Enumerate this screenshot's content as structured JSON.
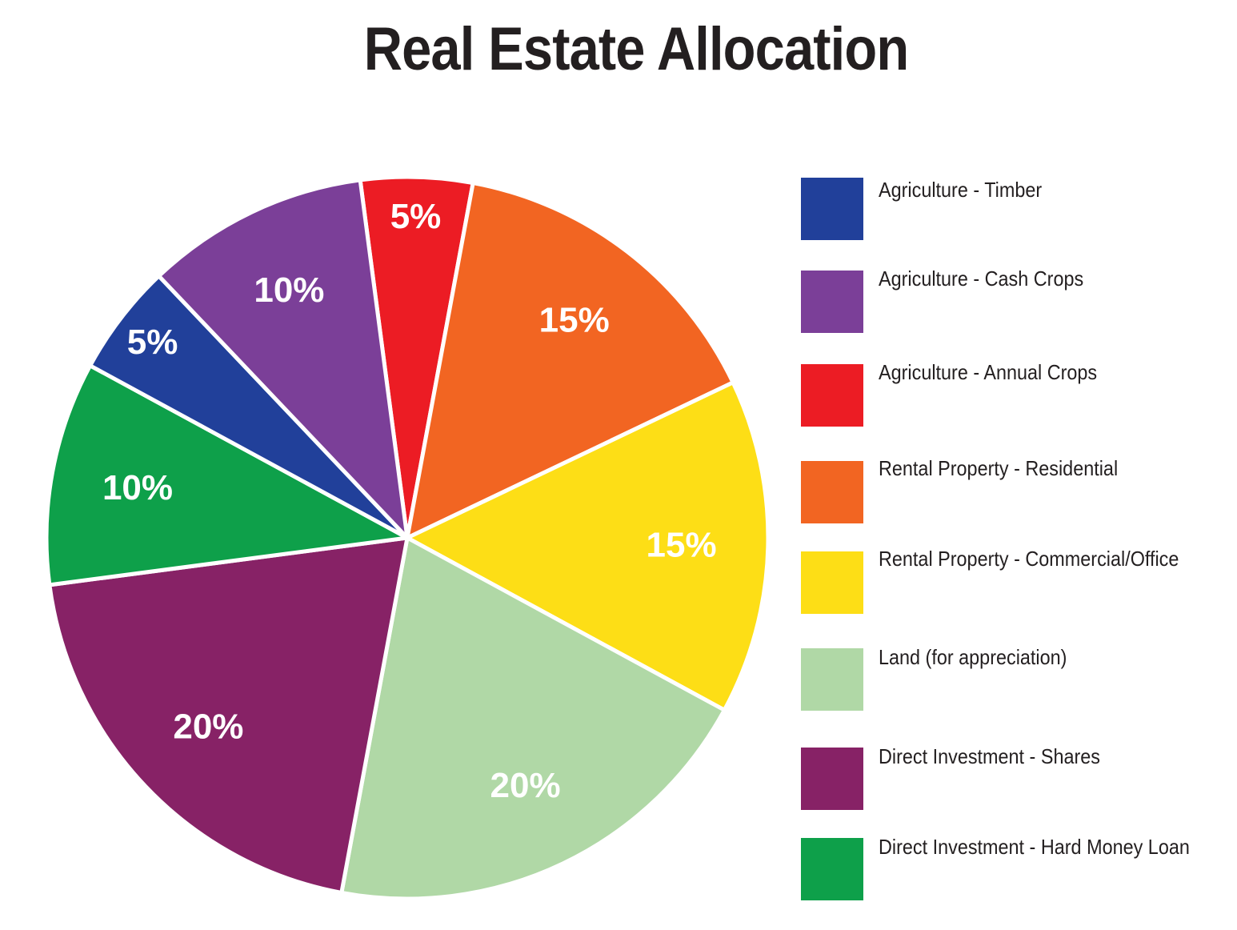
{
  "chart_data": {
    "type": "pie",
    "title": "Real Estate Allocation",
    "legend_position": "right",
    "slices": [
      {
        "name": "Agriculture - Annual Crops",
        "value": 5,
        "label": "5%",
        "color": "#ec1c24"
      },
      {
        "name": "Rental Property - Residential",
        "value": 15,
        "label": "15%",
        "color": "#f26522"
      },
      {
        "name": "Rental Property - Commercial/Office",
        "value": 15,
        "label": "15%",
        "color": "#fdde16"
      },
      {
        "name": "Land (for appreciation)",
        "value": 20,
        "label": "20%",
        "color": "#b0d8a6"
      },
      {
        "name": "Direct Investment - Shares",
        "value": 20,
        "label": "20%",
        "color": "#872266"
      },
      {
        "name": "Direct Investment - Hard Money Loan",
        "value": 10,
        "label": "10%",
        "color": "#0ea04a"
      },
      {
        "name": "Agriculture - Timber",
        "value": 5,
        "label": "5%",
        "color": "#21409a"
      },
      {
        "name": "Agriculture - Cash Crops",
        "value": 10,
        "label": "10%",
        "color": "#7b3f98"
      }
    ],
    "legend": [
      {
        "name": "Agriculture - Timber",
        "color": "#21409a"
      },
      {
        "name": "Agriculture - Cash Crops",
        "color": "#7b3f98"
      },
      {
        "name": "Agriculture - Annual Crops",
        "color": "#ec1c24"
      },
      {
        "name": "Rental Property - Residential",
        "color": "#f26522"
      },
      {
        "name": "Rental Property - Commercial/Office",
        "color": "#fdde16"
      },
      {
        "name": "Land (for appreciation)",
        "color": "#b0d8a6"
      },
      {
        "name": "Direct Investment - Shares",
        "color": "#872266"
      },
      {
        "name": "Direct Investment - Hard Money Loan",
        "color": "#0ea04a"
      }
    ]
  }
}
